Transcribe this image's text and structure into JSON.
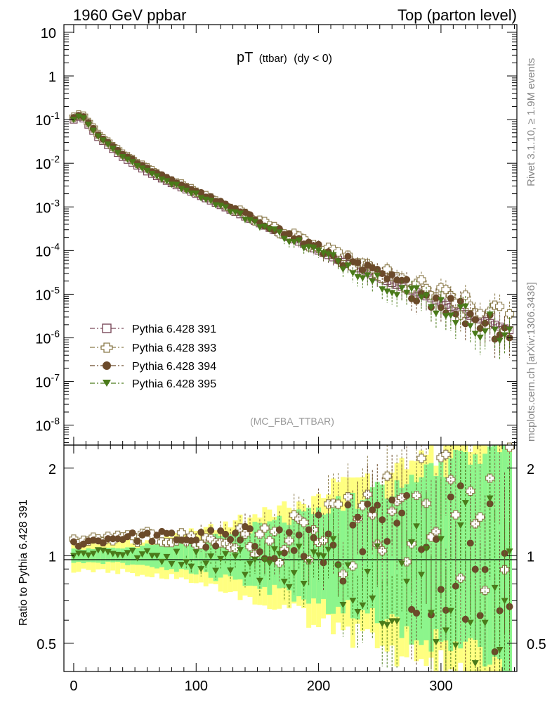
{
  "header": {
    "left": "1960 GeV ppbar",
    "right": "Top (parton level)"
  },
  "plot_title": {
    "main": "pT",
    "sub1": "(ttbar)",
    "sub2": "(dy < 0)"
  },
  "side_labels": {
    "rivet": "Rivet 3.1.10, ≥ 1.9M events",
    "mcplots": "mcplots.cern.ch [arXiv:1306.3436]"
  },
  "analysis_tag": "(MC_FBA_TTBAR)",
  "ratio_ylabel": "Ratio to Pythia 6.428 391",
  "colors": {
    "s391": "#7a4a5a",
    "s393": "#8a7a4a",
    "s394": "#6b4a2a",
    "s395": "#4a7a1a",
    "band_yellow": "#ffff80",
    "band_green": "#8cf58c"
  },
  "chart_data": {
    "type": "scatter",
    "x_axis": {
      "range": [
        -8,
        362
      ],
      "ticks": [
        0,
        100,
        200,
        300
      ],
      "tick_labels": [
        "0",
        "100",
        "200",
        "300"
      ]
    },
    "main_y": {
      "scale": "log",
      "range": [
        3.5e-09,
        15
      ],
      "ticks": [
        1e-08,
        1e-07,
        1e-06,
        1e-05,
        0.0001,
        0.001,
        0.01,
        0.1,
        1,
        10
      ],
      "tick_labels": [
        {
          "base": "10",
          "exp": "-8"
        },
        {
          "base": "10",
          "exp": "-7"
        },
        {
          "base": "10",
          "exp": "-6"
        },
        {
          "base": "10",
          "exp": "-5"
        },
        {
          "base": "10",
          "exp": "-4"
        },
        {
          "base": "10",
          "exp": "-3"
        },
        {
          "base": "10",
          "exp": "-2"
        },
        {
          "base": "10",
          "exp": "-1"
        },
        {
          "base": "1",
          "exp": ""
        },
        {
          "base": "10",
          "exp": ""
        }
      ]
    },
    "ratio_y": {
      "scale": "log",
      "range": [
        0.4,
        2.4
      ],
      "ticks": [
        0.5,
        1,
        2
      ],
      "tick_labels": [
        "0.5",
        "1",
        "2"
      ]
    },
    "bin_width": 4,
    "x_max": 356,
    "reference": {
      "peak_x": 6,
      "peak_value": 0.125,
      "start_value": 0.1,
      "anchors": [
        [
          6,
          0.125
        ],
        [
          20,
          0.04
        ],
        [
          40,
          0.014
        ],
        [
          60,
          0.0065
        ],
        [
          80,
          0.0035
        ],
        [
          100,
          0.002
        ],
        [
          120,
          0.0011
        ],
        [
          140,
          0.0006
        ],
        [
          160,
          0.00033
        ],
        [
          180,
          0.00018
        ],
        [
          200,
          0.0001
        ],
        [
          220,
          5.5e-05
        ],
        [
          240,
          3.1e-05
        ],
        [
          260,
          1.8e-05
        ],
        [
          280,
          1.1e-05
        ],
        [
          300,
          6.5e-06
        ],
        [
          320,
          3.5e-06
        ],
        [
          340,
          2.2e-06
        ],
        [
          356,
          1.5e-06
        ]
      ]
    },
    "series": [
      {
        "name": "Pythia 6.428 391",
        "marker": "open-square",
        "ratio_trend": [
          [
            0,
            1.0
          ],
          [
            360,
            1.0
          ]
        ]
      },
      {
        "name": "Pythia 6.428 393",
        "marker": "open-cross",
        "ratio_trend": [
          [
            0,
            1.12
          ],
          [
            60,
            1.16
          ],
          [
            120,
            1.12
          ],
          [
            200,
            1.13
          ],
          [
            280,
            1.3
          ],
          [
            356,
            1.4
          ]
        ]
      },
      {
        "name": "Pythia 6.428 394",
        "marker": "filled-circle",
        "ratio_trend": [
          [
            0,
            1.1
          ],
          [
            40,
            1.16
          ],
          [
            80,
            1.16
          ],
          [
            120,
            1.13
          ],
          [
            180,
            1.1
          ],
          [
            240,
            1.1
          ],
          [
            356,
            1.05
          ]
        ]
      },
      {
        "name": "Pythia 6.428 395",
        "marker": "filled-triangle-down",
        "ratio_trend": [
          [
            0,
            1.0
          ],
          [
            20,
            1.04
          ],
          [
            60,
            1.0
          ],
          [
            120,
            0.96
          ],
          [
            180,
            0.93
          ],
          [
            240,
            0.9
          ],
          [
            300,
            0.85
          ],
          [
            356,
            0.8
          ]
        ]
      }
    ]
  }
}
